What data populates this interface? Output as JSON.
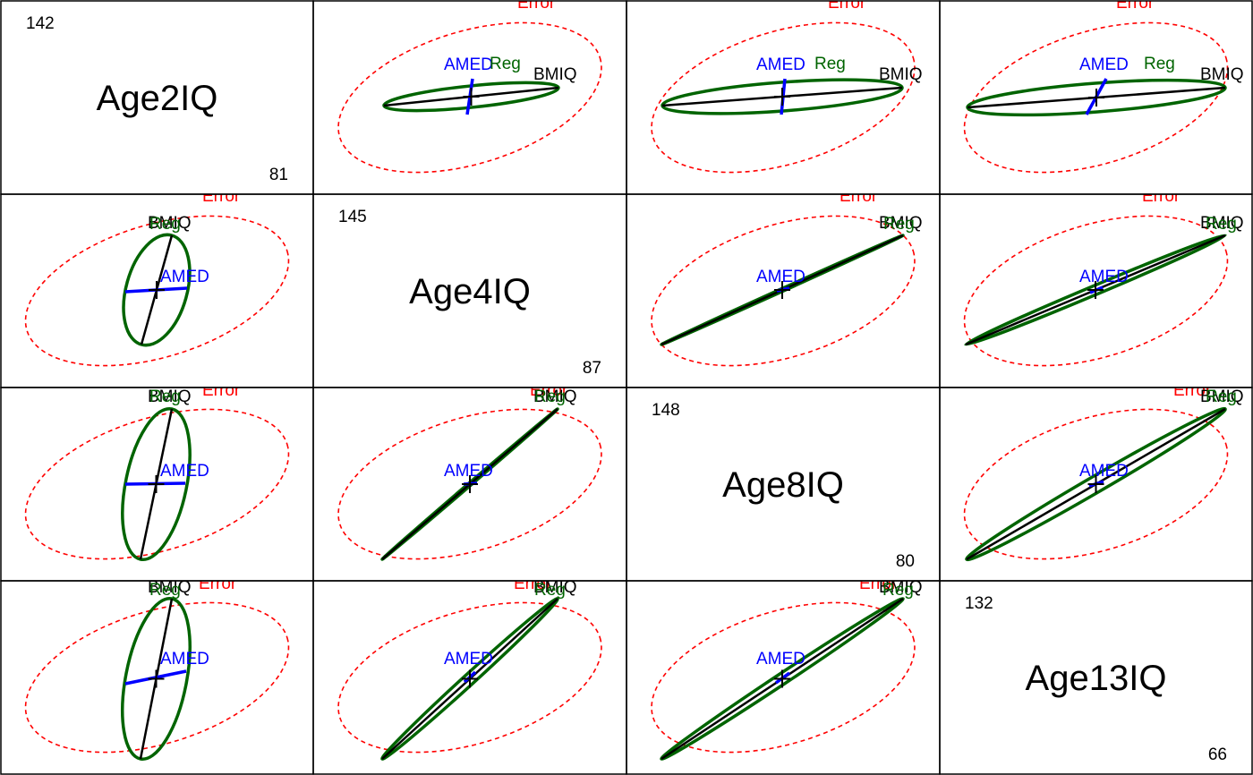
{
  "chart_data": {
    "type": "scatterplot-matrix",
    "colors": {
      "error": "#ff0000",
      "reg": "#006400",
      "hyp": "#0000ff",
      "means": "#000000"
    },
    "labels": {
      "error": "Error",
      "reg": "Reg",
      "hyp": "AMED",
      "means": "BMIQ"
    },
    "variables": [
      {
        "name": "Age2IQ",
        "max": "142",
        "min": "81"
      },
      {
        "name": "Age4IQ",
        "max": "145",
        "min": "87"
      },
      {
        "name": "Age8IQ",
        "max": "148",
        "min": "80"
      },
      {
        "name": "Age13IQ",
        "max": "132",
        "min": "66"
      }
    ],
    "panels": [
      {
        "row": 0,
        "col": 1,
        "axis": [
          [
            429,
            118
          ],
          [
            624,
            98
          ]
        ],
        "reg_minor": 12,
        "hyp": [
          [
            528,
            88
          ],
          [
            522,
            128
          ]
        ],
        "labels": {
          "hyp": [
            496,
            78
          ],
          "reg": [
            547,
            77
          ],
          "means": [
            596,
            89
          ],
          "error": [
            578,
            9
          ]
        }
      },
      {
        "row": 0,
        "col": 2,
        "axis": [
          [
            740,
            118
          ],
          [
            1008,
            98
          ]
        ],
        "reg_minor": 16,
        "hyp": [
          [
            877,
            88
          ],
          [
            873,
            128
          ]
        ],
        "labels": {
          "hyp": [
            845,
            78
          ],
          "reg": [
            910,
            77
          ],
          "means": [
            982,
            89
          ],
          "error": [
            925,
            9
          ]
        }
      },
      {
        "row": 0,
        "col": 3,
        "axis": [
          [
            1081,
            120
          ],
          [
            1369,
            98
          ]
        ],
        "reg_minor": 16,
        "hyp": [
          [
            1236,
            88
          ],
          [
            1214,
            128
          ]
        ],
        "labels": {
          "hyp": [
            1206,
            78
          ],
          "reg": [
            1278,
            77
          ],
          "means": [
            1341,
            89
          ],
          "error": [
            1247,
            9
          ]
        }
      },
      {
        "row": 1,
        "col": 0,
        "axis": [
          [
            158,
            385
          ],
          [
            192,
            263
          ]
        ],
        "reg_minor": 34,
        "hyp": [
          [
            140,
            326
          ],
          [
            209,
            322
          ]
        ],
        "labels": {
          "hyp": [
            179,
            315
          ],
          "reg": [
            167,
            256
          ],
          "means": [
            165,
            255
          ],
          "error": [
            226,
            225
          ]
        }
      },
      {
        "row": 1,
        "col": 2,
        "axis": [
          [
            739,
            385
          ],
          [
            1009,
            263
          ]
        ],
        "reg_minor": 1.5,
        "hyp": [
          [
            868,
            325
          ],
          [
            882,
            322
          ]
        ],
        "labels": {
          "hyp": [
            845,
            315
          ],
          "reg": [
            987,
            256
          ],
          "means": [
            982,
            255
          ],
          "error": [
            938,
            225
          ]
        }
      },
      {
        "row": 1,
        "col": 3,
        "axis": [
          [
            1079,
            385
          ],
          [
            1369,
            263
          ]
        ],
        "reg_minor": 5,
        "hyp": [
          [
            1218,
            327
          ],
          [
            1232,
            321
          ]
        ],
        "labels": {
          "hyp": [
            1206,
            315
          ],
          "reg": [
            1347,
            256
          ],
          "means": [
            1341,
            255
          ],
          "error": [
            1276,
            225
          ]
        }
      },
      {
        "row": 2,
        "col": 0,
        "axis": [
          [
            157,
            625
          ],
          [
            192,
            457
          ]
        ],
        "reg_minor": 34,
        "hyp": [
          [
            140,
            541
          ],
          [
            207,
            540
          ]
        ],
        "labels": {
          "hyp": [
            179,
            532
          ],
          "reg": [
            167,
            449
          ],
          "means": [
            165,
            449
          ],
          "error": [
            226,
            442
          ]
        }
      },
      {
        "row": 2,
        "col": 1,
        "axis": [
          [
            427,
            625
          ],
          [
            623,
            457
          ]
        ],
        "reg_minor": 1.5,
        "hyp": [
          [
            518,
            541
          ],
          [
            533,
            540
          ]
        ],
        "labels": {
          "hyp": [
            496,
            532
          ],
          "reg": [
            597,
            449
          ],
          "means": [
            596,
            449
          ],
          "error": [
            592,
            442
          ]
        }
      },
      {
        "row": 2,
        "col": 3,
        "axis": [
          [
            1080,
            625
          ],
          [
            1369,
            457
          ]
        ],
        "reg_minor": 9,
        "hyp": [
          [
            1217,
            543
          ],
          [
            1233,
            538
          ]
        ],
        "labels": {
          "hyp": [
            1206,
            532
          ],
          "reg": [
            1347,
            449
          ],
          "means": [
            1341,
            449
          ],
          "error": [
            1311,
            442
          ]
        }
      },
      {
        "row": 3,
        "col": 0,
        "axis": [
          [
            157,
            848
          ],
          [
            192,
            669
          ]
        ],
        "reg_minor": 34,
        "hyp": [
          [
            140,
            764
          ],
          [
            208,
            750
          ]
        ],
        "labels": {
          "hyp": [
            179,
            742
          ],
          "reg": [
            167,
            665
          ],
          "means": [
            165,
            662
          ],
          "error": [
            222,
            658
          ]
        }
      },
      {
        "row": 3,
        "col": 1,
        "axis": [
          [
            427,
            848
          ],
          [
            623,
            669
          ]
        ],
        "reg_minor": 6,
        "hyp": [
          [
            519,
            762
          ],
          [
            531,
            751
          ]
        ],
        "labels": {
          "hyp": [
            496,
            742
          ],
          "reg": [
            597,
            665
          ],
          "means": [
            596,
            662
          ],
          "error": [
            574,
            658
          ]
        }
      },
      {
        "row": 3,
        "col": 2,
        "axis": [
          [
            739,
            848
          ],
          [
            1009,
            669
          ]
        ],
        "reg_minor": 6,
        "hyp": [
          [
            867,
            763
          ],
          [
            882,
            752
          ]
        ],
        "labels": {
          "hyp": [
            845,
            742
          ],
          "reg": [
            986,
            665
          ],
          "means": [
            982,
            662
          ],
          "error": [
            960,
            658
          ]
        }
      }
    ]
  }
}
